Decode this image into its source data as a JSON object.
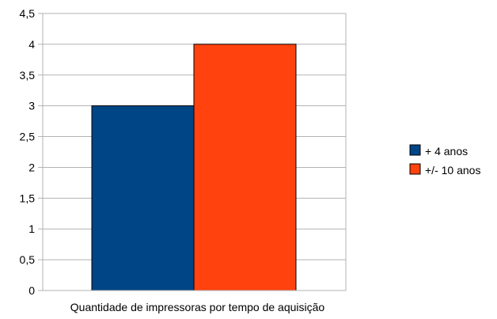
{
  "chart_data": {
    "type": "bar",
    "categories": [
      "Quantidade de impressoras por tempo de aquisição"
    ],
    "series": [
      {
        "name": "+ 4 anos",
        "values": [
          3
        ],
        "color": "#004586"
      },
      {
        "name": "+/- 10 anos",
        "values": [
          4
        ],
        "color": "#ff420e"
      }
    ],
    "title": "",
    "xlabel": "",
    "ylabel": "",
    "ylim": [
      0,
      4.5
    ],
    "yticks": [
      "0",
      "0,5",
      "1",
      "1,5",
      "2",
      "2,5",
      "3",
      "3,5",
      "4",
      "4,5"
    ],
    "grid": true,
    "legend_position": "right"
  }
}
